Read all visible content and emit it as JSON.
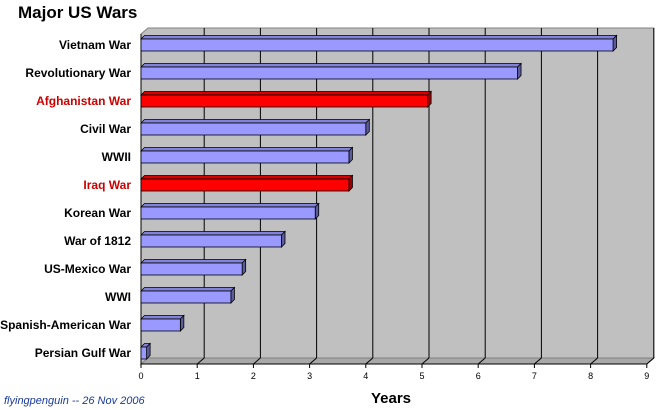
{
  "chart_data": {
    "type": "bar",
    "orientation": "horizontal",
    "title": "Major US Wars",
    "xlabel": "Years",
    "ylabel": "",
    "xlim": [
      0,
      9
    ],
    "x_ticks": [
      "0",
      "1",
      "2",
      "3",
      "4",
      "5",
      "6",
      "7",
      "8",
      "9"
    ],
    "grid": true,
    "categories": [
      "Vietnam War",
      "Revolutionary War",
      "Afghanistan War",
      "Civil War",
      "WWII",
      "Iraq War",
      "Korean War",
      "War of 1812",
      "US-Mexico War",
      "WWI",
      "Spanish-American War",
      "Persian Gulf War"
    ],
    "values": [
      8.4,
      6.7,
      5.1,
      4.0,
      3.7,
      3.7,
      3.1,
      2.5,
      1.8,
      1.6,
      0.7,
      0.1
    ],
    "highlighted": [
      "Afghanistan War",
      "Iraq War"
    ],
    "colors": {
      "bar": "#9999ff",
      "bar_highlight": "#ff0000",
      "label": "#000000",
      "label_highlight": "#cc0000",
      "plot_background": "#c0c0c0"
    }
  },
  "credit": "flyingpenguin -- 26 Nov 2006"
}
